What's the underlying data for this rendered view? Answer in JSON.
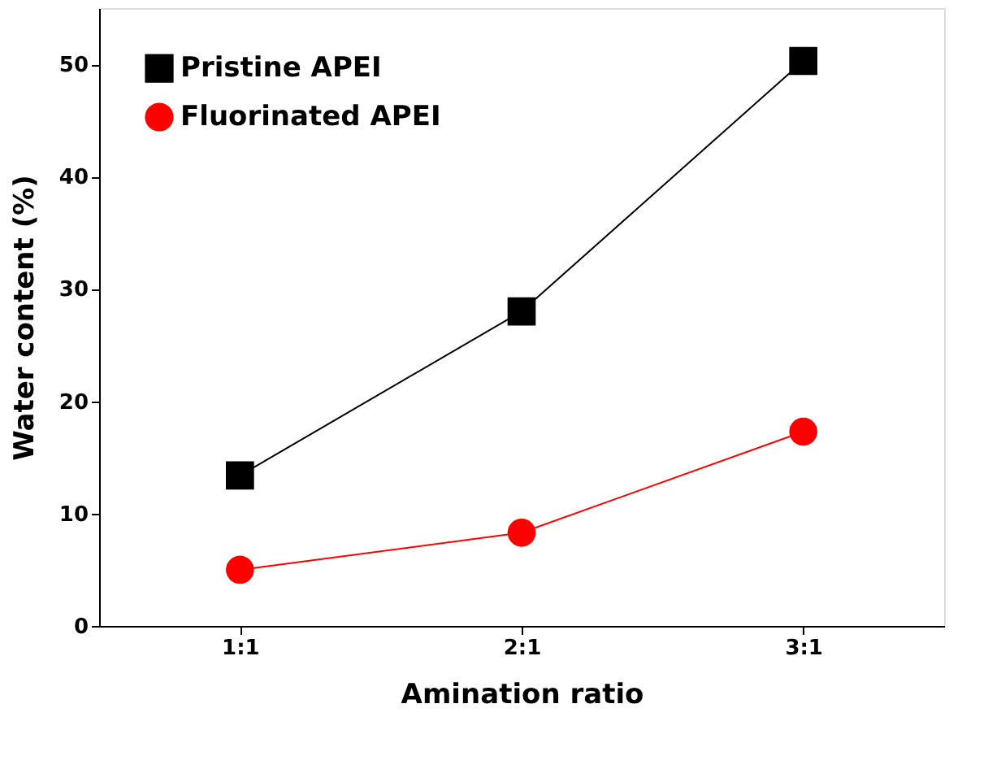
{
  "chart_data": {
    "type": "line",
    "xlabel": "Amination ratio",
    "ylabel": "Water content (%)",
    "categories": [
      "1:1",
      "2:1",
      "3:1"
    ],
    "series": [
      {
        "name": "Pristine APEI",
        "color": "#000000",
        "marker": "square",
        "values": [
          13.4,
          28.0,
          50.3
        ]
      },
      {
        "name": "Fluorinated APEI",
        "color": "#ff0000",
        "marker": "circle",
        "values": [
          5.0,
          8.3,
          17.3
        ]
      }
    ],
    "ylim": [
      0,
      55
    ],
    "yticks": [
      0,
      10,
      20,
      30,
      40,
      50
    ],
    "grid": false,
    "legend": "top left",
    "line_style": "solid"
  }
}
